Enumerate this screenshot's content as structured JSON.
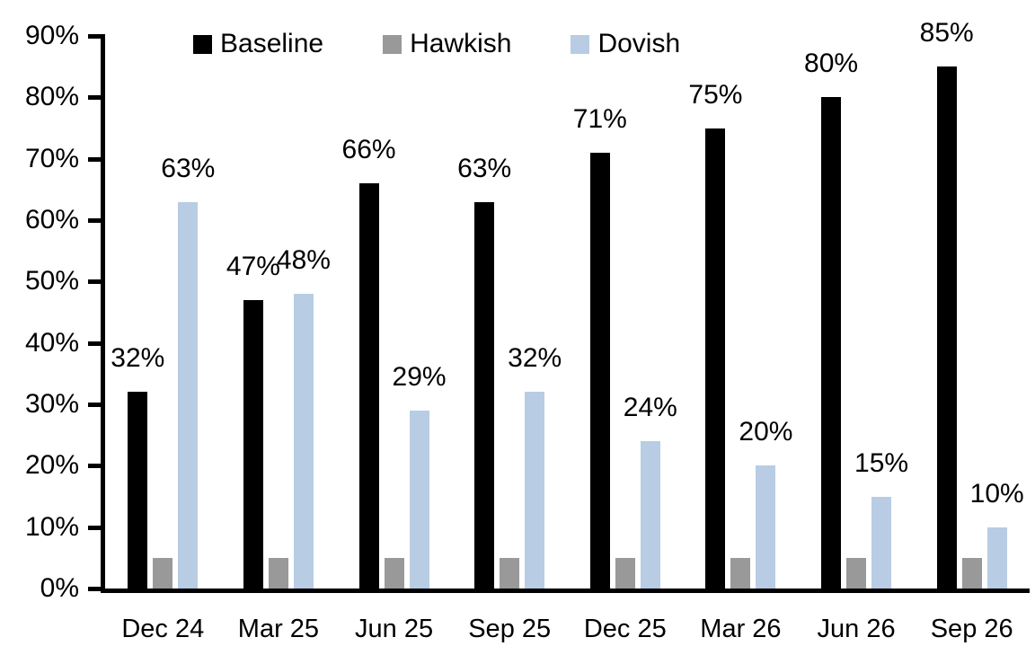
{
  "chart_data": {
    "type": "bar",
    "title": "",
    "categories": [
      "Dec 24",
      "Mar 25",
      "Jun 25",
      "Sep 25",
      "Dec 25",
      "Mar 26",
      "Jun 26",
      "Sep 26"
    ],
    "series": [
      {
        "name": "Baseline",
        "color": "#000000",
        "values": [
          32,
          47,
          66,
          63,
          71,
          75,
          80,
          85
        ],
        "data_labels": [
          "32%",
          "47%",
          "66%",
          "63%",
          "71%",
          "75%",
          "80%",
          "85%"
        ]
      },
      {
        "name": "Hawkish",
        "color": "#999999",
        "values": [
          5,
          5,
          5,
          5,
          5,
          5,
          5,
          5
        ],
        "data_labels": null
      },
      {
        "name": "Dovish",
        "color": "#B8CCE4",
        "values": [
          63,
          48,
          29,
          32,
          24,
          20,
          15,
          10
        ],
        "data_labels": [
          "63%",
          "48%",
          "29%",
          "32%",
          "24%",
          "20%",
          "15%",
          "10%"
        ]
      }
    ],
    "xlabel": "",
    "ylabel": "",
    "ylim": [
      0,
      90
    ],
    "ytick_step": 10,
    "yticks": [
      "0%",
      "10%",
      "20%",
      "30%",
      "40%",
      "50%",
      "60%",
      "70%",
      "80%",
      "90%"
    ],
    "grid": false,
    "legend_position": "top",
    "axis_color": "#000000",
    "background_color": "#FFFFFF"
  }
}
